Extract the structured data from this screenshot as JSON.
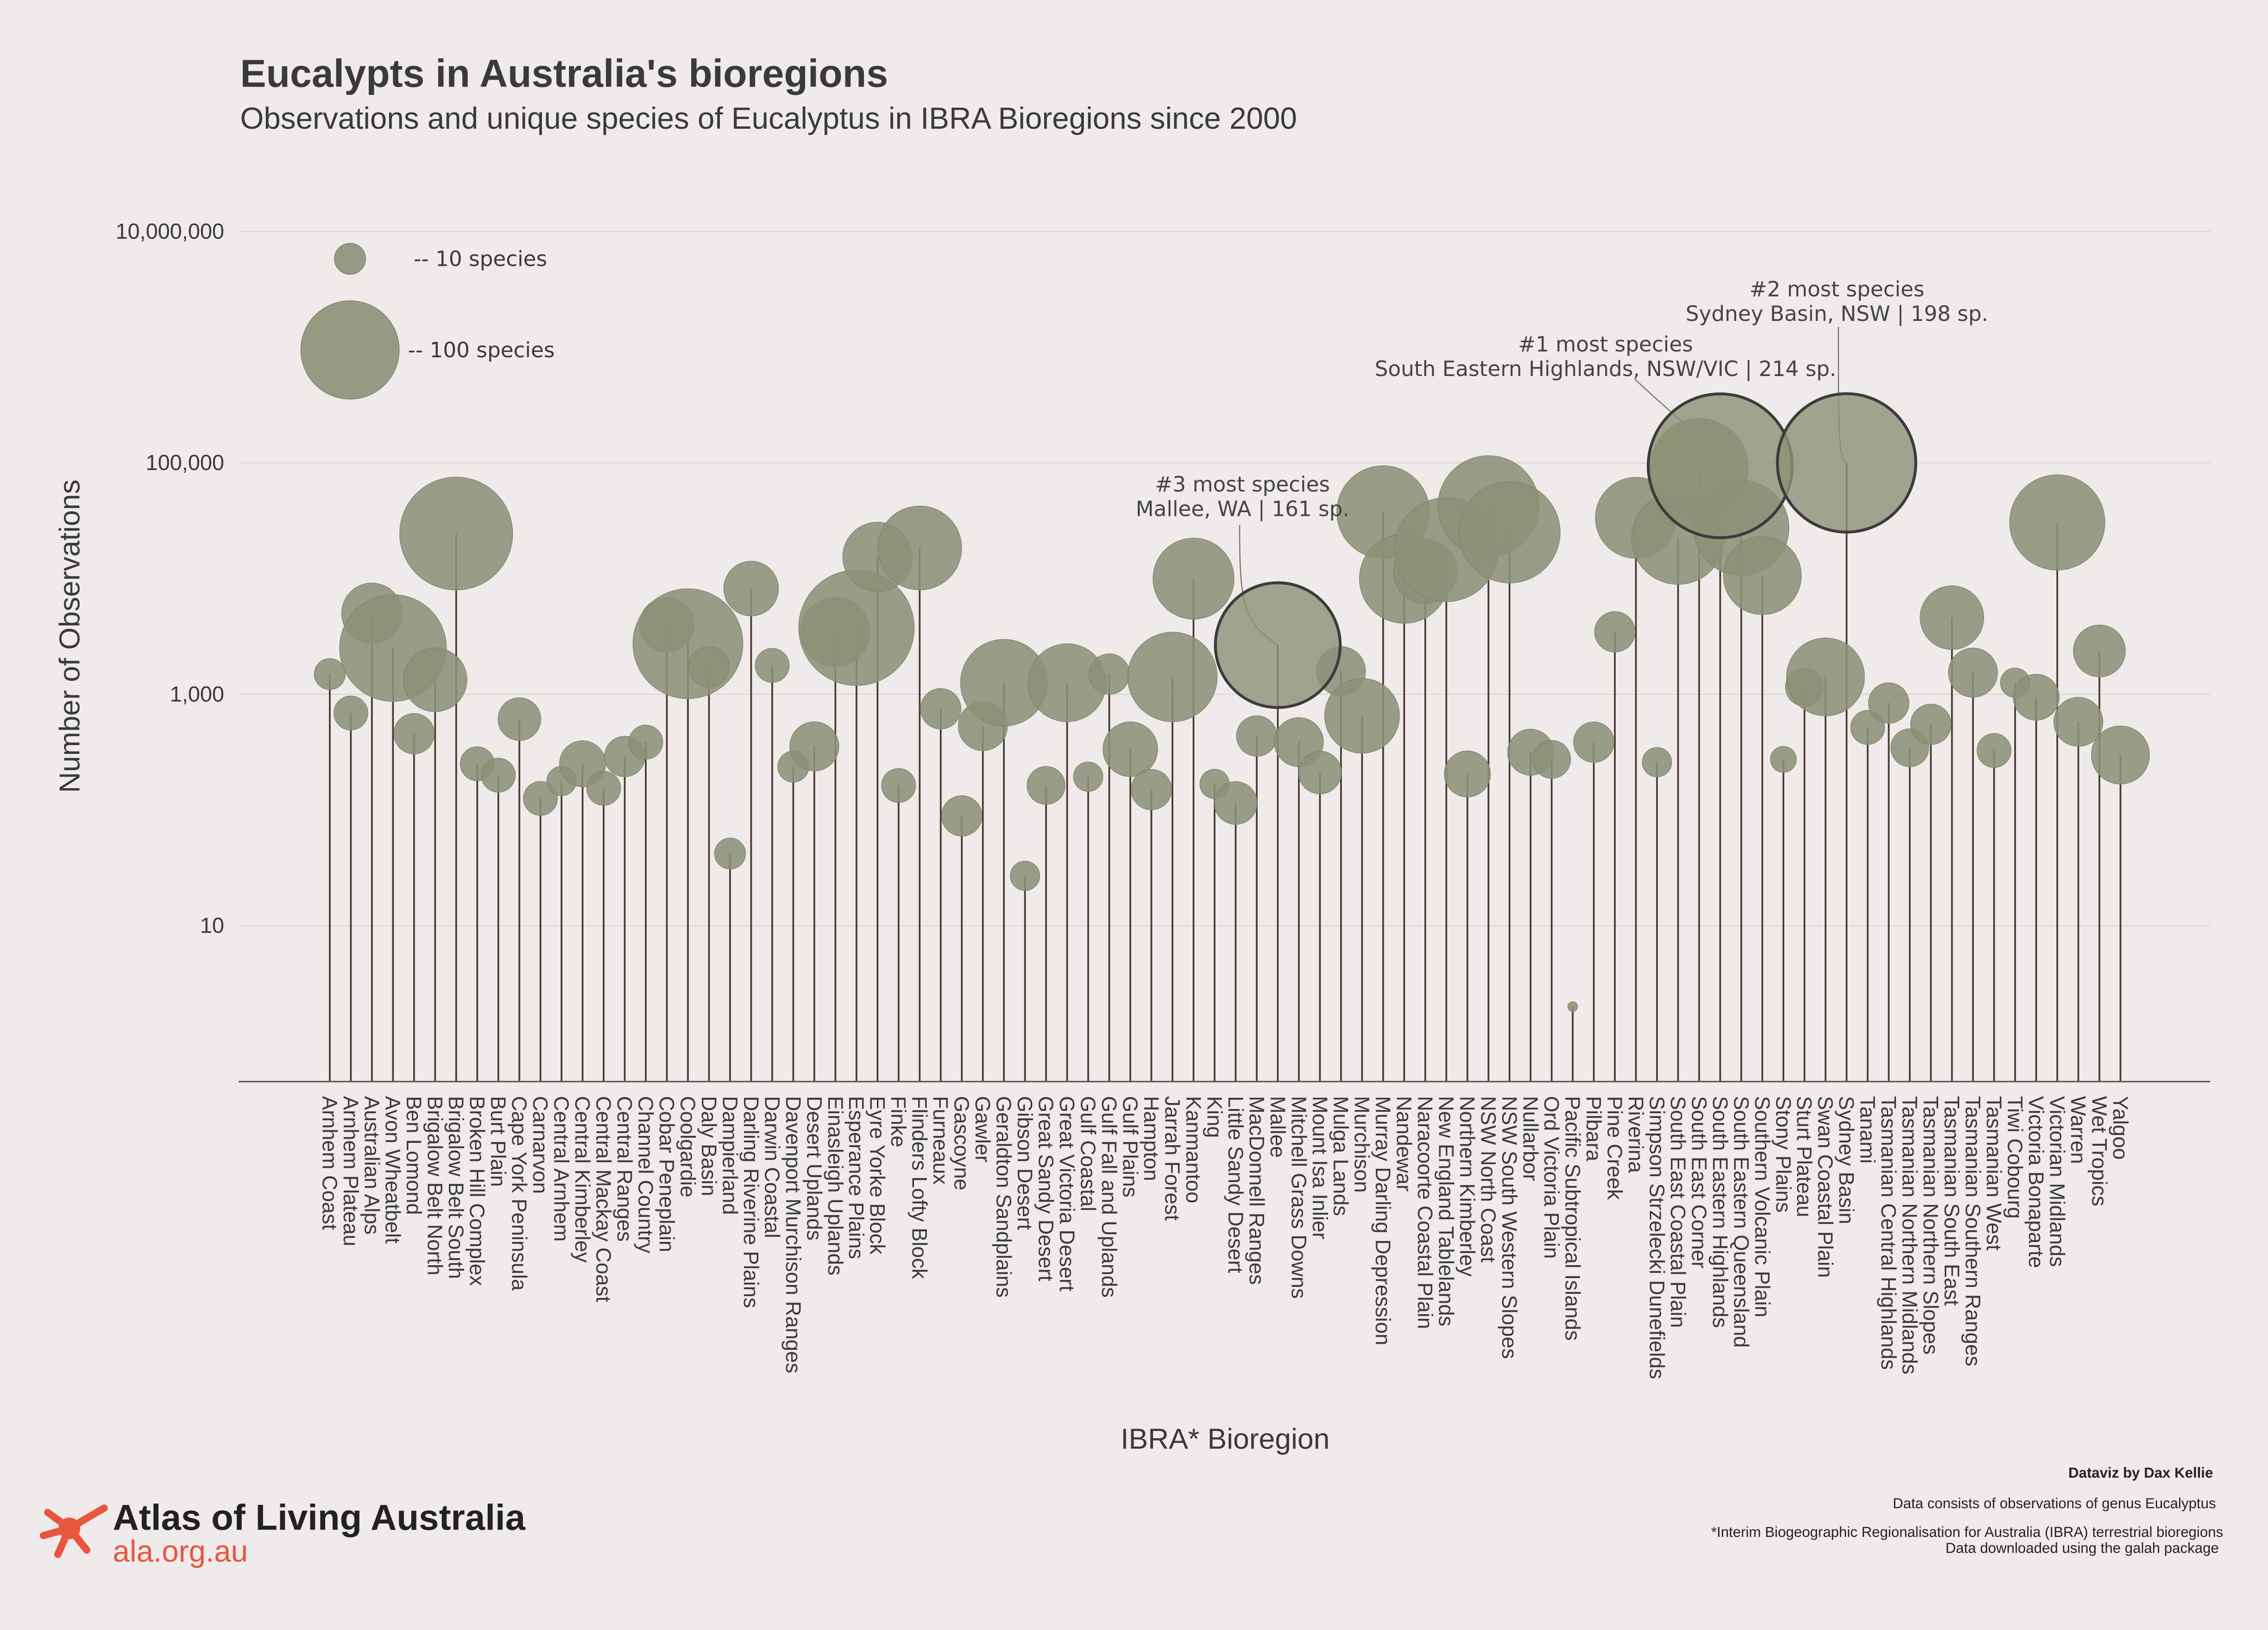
{
  "chart_data": {
    "type": "bubble",
    "title": "Eucalypts in Australia's bioregions",
    "subtitle": "Observations and unique species of Eucalyptus in IBRA Bioregions since 2000",
    "x_label": "IBRA* Bioregion",
    "y_label": "Number of Observations",
    "log_y": true,
    "grid": true,
    "color": "#8b9277",
    "stem_color": "#4a3a30",
    "ylim": [
      0.45,
      20000000
    ],
    "yticks": [
      10,
      {
        "value": 1000,
        "label": "1,000"
      },
      {
        "value": 100000,
        "label": "100,000"
      },
      {
        "value": 10000000,
        "label": "10,000,000"
      }
    ],
    "size_legend": [
      {
        "value": 10,
        "label": "-- 10 species"
      },
      {
        "value": 100,
        "label": "-- 100 species"
      }
    ],
    "categories": [
      "Arnhem Coast",
      "Arnhem Plateau",
      "Australian Alps",
      "Avon Wheatbelt",
      "Ben Lomond",
      "Brigalow Belt North",
      "Brigalow Belt South",
      "Broken Hill Complex",
      "Burt Plain",
      "Cape York Peninsula",
      "Carnarvon",
      "Central Arnhem",
      "Central Kimberley",
      "Central Mackay Coast",
      "Central Ranges",
      "Channel Country",
      "Cobar Peneplain",
      "Coolgardie",
      "Daly Basin",
      "Dampierland",
      "Darling Riverine Plains",
      "Darwin Coastal",
      "Davenport Murchison Ranges",
      "Desert Uplands",
      "Einasleigh Uplands",
      "Esperance Plains",
      "Eyre Yorke Block",
      "Finke",
      "Flinders Lofty Block",
      "Furneaux",
      "Gascoyne",
      "Gawler",
      "Geraldton Sandplains",
      "Gibson Desert",
      "Great Sandy Desert",
      "Great Victoria Desert",
      "Gulf Coastal",
      "Gulf Fall and Uplands",
      "Gulf Plains",
      "Hampton",
      "Jarrah Forest",
      "Kanmantoo",
      "King",
      "Little Sandy Desert",
      "MacDonnell Ranges",
      "Mallee",
      "Mitchell Grass Downs",
      "Mount Isa Inlier",
      "Mulga Lands",
      "Murchison",
      "Murray Darling Depression",
      "Nandewar",
      "Naracoorte Coastal Plain",
      "New England Tablelands",
      "Northern Kimberley",
      "NSW North Coast",
      "NSW South Western Slopes",
      "Nullarbor",
      "Ord Victoria Plain",
      "Pacific Subtropical Islands",
      "Pilbara",
      "Pine Creek",
      "Riverina",
      "Simpson Strzelecki Dunefields",
      "South East Coastal Plain",
      "South East Corner",
      "South Eastern Highlands",
      "South Eastern Queensland",
      "Southern Volcanic Plain",
      "Stony Plains",
      "Sturt Plateau",
      "Swan Coastal Plain",
      "Sydney Basin",
      "Tanami",
      "Tasmanian Central Highlands",
      "Tasmanian Northern Midlands",
      "Tasmanian Northern Slopes",
      "Tasmanian South East",
      "Tasmanian Southern Ranges",
      "Tasmanian West",
      "Tiwi Cobourg",
      "Victoria Bonaparte",
      "Victorian Midlands",
      "Warren",
      "Wet Tropics",
      "Yalgoo"
    ],
    "values": [
      1496,
      689,
      5012,
      2512,
      457,
      1334,
      24500,
      251,
      200,
      610,
      126,
      178,
      251,
      154,
      290,
      386,
      3981,
      2738,
      1730,
      42,
      8200,
      1778,
      237,
      355,
      3467,
      3758,
      15400,
      163,
      18400,
      750,
      89,
      531,
      1259,
      27,
      163,
      1259,
      194,
      1496,
      335,
      150,
      1413,
      10000,
      168,
      115,
      436,
      2661,
      386,
      211,
      1585,
      652,
      37600,
      10000,
      11500,
      17800,
      205,
      42200,
      25100,
      316,
      274,
      2,
      386,
      3467,
      33500,
      259,
      22400,
      91000,
      94400,
      27400,
      10600,
      274,
      1155,
      1413,
      100000,
      517,
      841,
      345,
      550,
      4600,
      1540,
      327,
      1259,
      944,
      30600,
      578,
      2371,
      299
    ],
    "species": [
      10,
      12,
      38,
      118,
      17,
      42,
      132,
      12,
      12,
      19,
      12,
      9,
      22,
      12,
      17,
      12,
      31,
      125,
      17,
      10,
      31,
      12,
      10,
      25,
      50,
      138,
      50,
      12,
      73,
      17,
      17,
      25,
      78,
      9,
      15,
      63,
      9,
      17,
      31,
      17,
      83,
      68,
      9,
      19,
      17,
      161,
      25,
      19,
      25,
      58,
      89,
      83,
      42,
      112,
      22,
      106,
      106,
      22,
      15,
      1,
      17,
      17,
      68,
      9,
      89,
      100,
      214,
      94,
      63,
      7,
      15,
      63,
      198,
      12,
      17,
      15,
      17,
      42,
      25,
      12,
      9,
      22,
      94,
      25,
      28,
      35
    ],
    "annotations": [
      {
        "title": "#1 most species",
        "text": "South Eastern Highlands, NSW/VIC | 214 sp."
      },
      {
        "title": "#2 most species",
        "text": "Sydney Basin, NSW | 198 sp."
      },
      {
        "title": "#3 most species",
        "text": "Mallee, WA | 161 sp."
      }
    ]
  },
  "credits": {
    "author": "Dataviz by Dax Kellie",
    "data_note": "Data consists of observations of genus Eucalyptus",
    "ibra_note": "*Interim Biogeographic Regionalisation for Australia (IBRA) terrestrial bioregions",
    "download_note": "Data downloaded using the galah package"
  },
  "logo": {
    "name": "Atlas of Living Australia",
    "url": "ala.org.au"
  }
}
